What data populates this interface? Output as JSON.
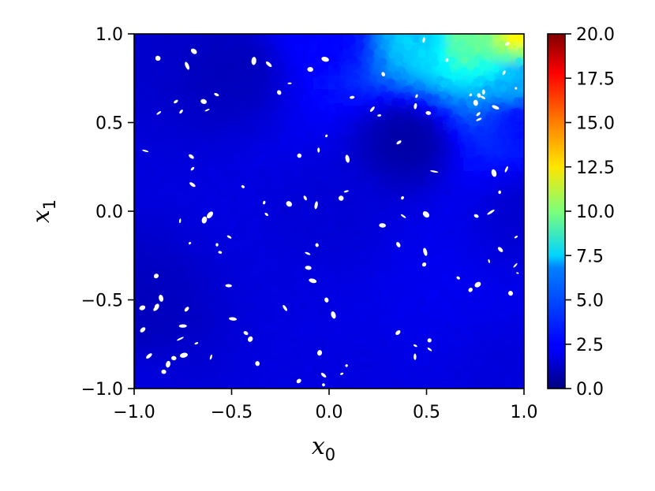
{
  "chart_data": {
    "type": "heatmap",
    "title": "",
    "xlabel": "x",
    "xlabel_sub": "0",
    "ylabel": "x",
    "ylabel_sub": "1",
    "xlim": [
      -1.0,
      1.0
    ],
    "ylim": [
      -1.0,
      1.0
    ],
    "x_ticks": [
      "−1.0",
      "−0.5",
      "0.0",
      "0.5",
      "1.0"
    ],
    "y_ticks": [
      "−1.0",
      "−0.5",
      "0.0",
      "0.5",
      "1.0"
    ],
    "x_tick_values": [
      -1.0,
      -0.5,
      0.0,
      0.5,
      1.0
    ],
    "y_tick_values": [
      -1.0,
      -0.5,
      0.0,
      0.5,
      1.0
    ],
    "colorbar": {
      "colormap": "jet",
      "range": [
        0.0,
        20.0
      ],
      "tick_values": [
        0.0,
        2.5,
        5.0,
        7.5,
        10.0,
        12.5,
        15.0,
        17.5,
        20.0
      ],
      "ticks": [
        "0.0",
        "2.5",
        "5.0",
        "7.5",
        "10.0",
        "12.5",
        "15.0",
        "17.5",
        "20.0"
      ]
    },
    "field": {
      "description_points": [
        {
          "x": -1.0,
          "y": 1.0,
          "v": 1.5
        },
        {
          "x": 0.0,
          "y": 1.0,
          "v": 2.5
        },
        {
          "x": 0.5,
          "y": 1.0,
          "v": 6.5
        },
        {
          "x": 0.7,
          "y": 1.0,
          "v": 9.5
        },
        {
          "x": 1.0,
          "y": 1.0,
          "v": 12.5
        },
        {
          "x": 1.0,
          "y": 0.75,
          "v": 6.0
        },
        {
          "x": 1.0,
          "y": 0.5,
          "v": 2.8
        },
        {
          "x": 1.0,
          "y": 0.0,
          "v": 1.6
        },
        {
          "x": 1.0,
          "y": -1.0,
          "v": 1.8
        },
        {
          "x": 0.0,
          "y": 0.0,
          "v": 1.7
        },
        {
          "x": 0.4,
          "y": 0.4,
          "v": 0.8
        },
        {
          "x": -0.5,
          "y": 0.8,
          "v": 1.2
        },
        {
          "x": -1.0,
          "y": -0.6,
          "v": 1.2
        },
        {
          "x": -1.0,
          "y": -1.0,
          "v": 1.8
        },
        {
          "x": 0.0,
          "y": -1.0,
          "v": 1.9
        }
      ]
    },
    "grid": false
  }
}
